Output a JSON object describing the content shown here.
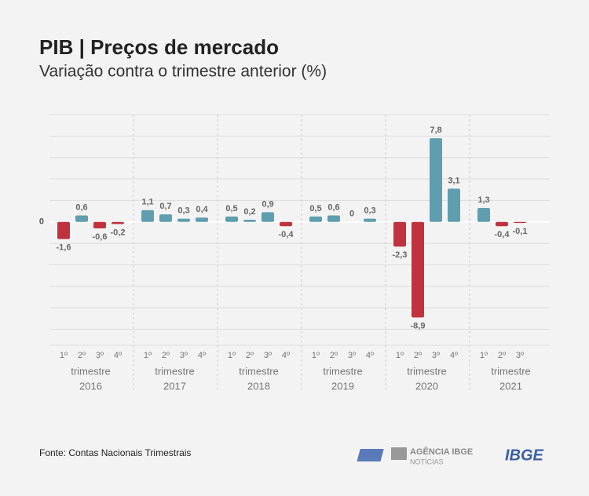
{
  "chart_data": {
    "type": "bar",
    "title": "PIB | Preços de mercado",
    "subtitle": "Variação contra o trimestre anterior (%)",
    "groups": [
      {
        "name": "2016",
        "label": "trimestre",
        "categories": [
          "1º",
          "2º",
          "3º",
          "4º"
        ],
        "values": [
          -1.6,
          0.6,
          -0.6,
          -0.2
        ],
        "value_labels": [
          "-1,6",
          "0,6",
          "-0,6",
          "-0,2"
        ]
      },
      {
        "name": "2017",
        "label": "trimestre",
        "categories": [
          "1º",
          "2º",
          "3º",
          "4º"
        ],
        "values": [
          1.1,
          0.7,
          0.3,
          0.4
        ],
        "value_labels": [
          "1,1",
          "0,7",
          "0,3",
          "0,4"
        ]
      },
      {
        "name": "2018",
        "label": "trimestre",
        "categories": [
          "1º",
          "2º",
          "3º",
          "4º"
        ],
        "values": [
          0.5,
          0.2,
          0.9,
          -0.4
        ],
        "value_labels": [
          "0,5",
          "0,2",
          "0,9",
          "-0,4"
        ]
      },
      {
        "name": "2019",
        "label": "trimestre",
        "categories": [
          "1º",
          "2º",
          "3º",
          "4º"
        ],
        "values": [
          0.5,
          0.6,
          0,
          0.3
        ],
        "value_labels": [
          "0,5",
          "0,6",
          "0",
          "0,3"
        ]
      },
      {
        "name": "2020",
        "label": "trimestre",
        "categories": [
          "1º",
          "2º",
          "3º",
          "4º"
        ],
        "values": [
          -2.3,
          -8.9,
          7.8,
          3.1
        ],
        "value_labels": [
          "-2,3",
          "-8,9",
          "7,8",
          "3,1"
        ]
      },
      {
        "name": "2021",
        "label": "trimestre",
        "categories": [
          "1º",
          "2º",
          "3º"
        ],
        "values": [
          1.3,
          -0.4,
          -0.1
        ],
        "value_labels": [
          "1,3",
          "-0,4",
          "-0,1"
        ]
      }
    ],
    "colors": {
      "positive": "#5e9eae",
      "negative": "#c1323f"
    },
    "ylim": [
      -11.5,
      10
    ],
    "yticks": [
      0
    ],
    "ygrid": [
      -10,
      -8,
      -6,
      -4,
      -2,
      2,
      4,
      6,
      8,
      10
    ],
    "source": "Fonte: Contas Nacionais Trimestrais"
  },
  "logos": {
    "agency": "AGÊNCIA IBGE",
    "agency_sub": "NOTÍCIAS",
    "ibge": "IBGE"
  }
}
